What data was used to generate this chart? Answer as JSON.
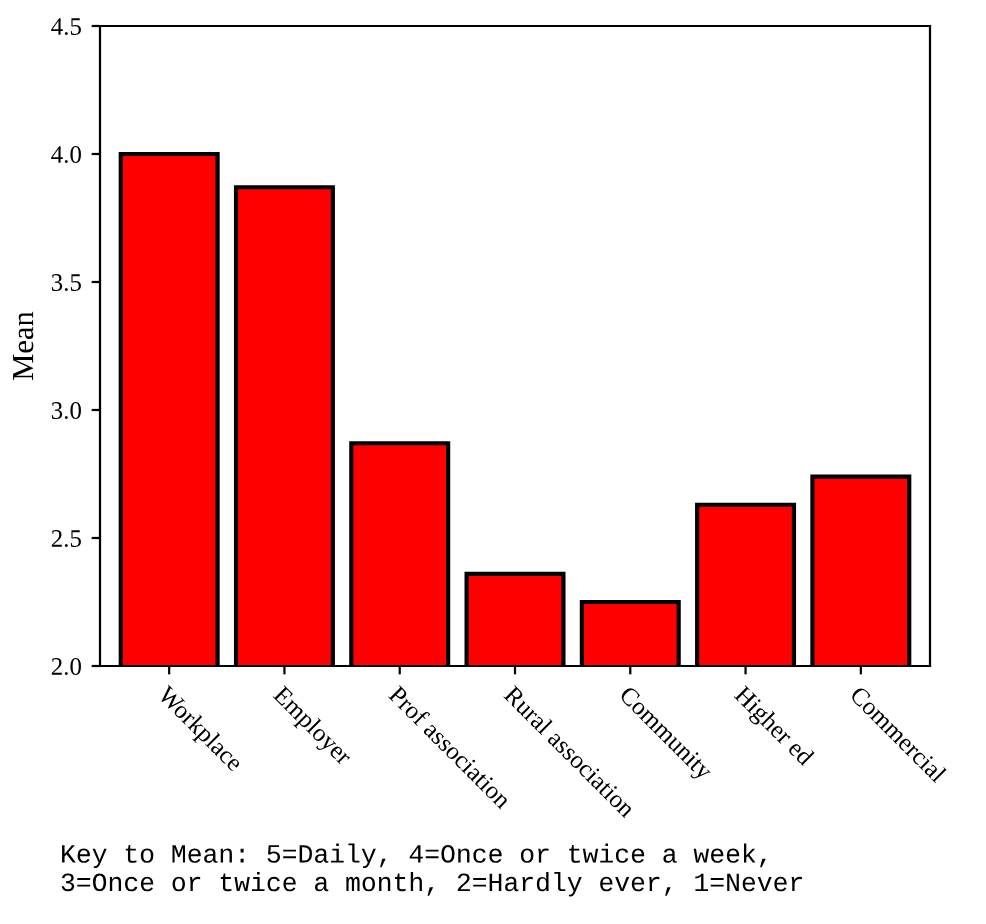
{
  "chart_data": {
    "type": "bar",
    "ylabel": "Mean",
    "categories": [
      "Workplace",
      "Employer",
      "Prof association",
      "Rural association",
      "Community",
      "Higher ed",
      "Commercial"
    ],
    "values": [
      4.0,
      3.87,
      2.87,
      2.36,
      2.25,
      2.63,
      2.74
    ],
    "color": "#ff0000",
    "ylim": [
      2.0,
      4.5
    ],
    "yticks": [
      {
        "value": 2.0,
        "label": "2.0"
      },
      {
        "value": 2.5,
        "label": "2.5"
      },
      {
        "value": 3.0,
        "label": "3.0"
      },
      {
        "value": 3.5,
        "label": "3.5"
      },
      {
        "value": 4.0,
        "label": "4.0"
      },
      {
        "value": 4.5,
        "label": "4.5"
      }
    ],
    "grid": false,
    "annotations": [
      "Key to Mean: 5=Daily, 4=Once or twice a week,\n3=Once or twice a month, 2=Hardly ever, 1=Never"
    ]
  }
}
